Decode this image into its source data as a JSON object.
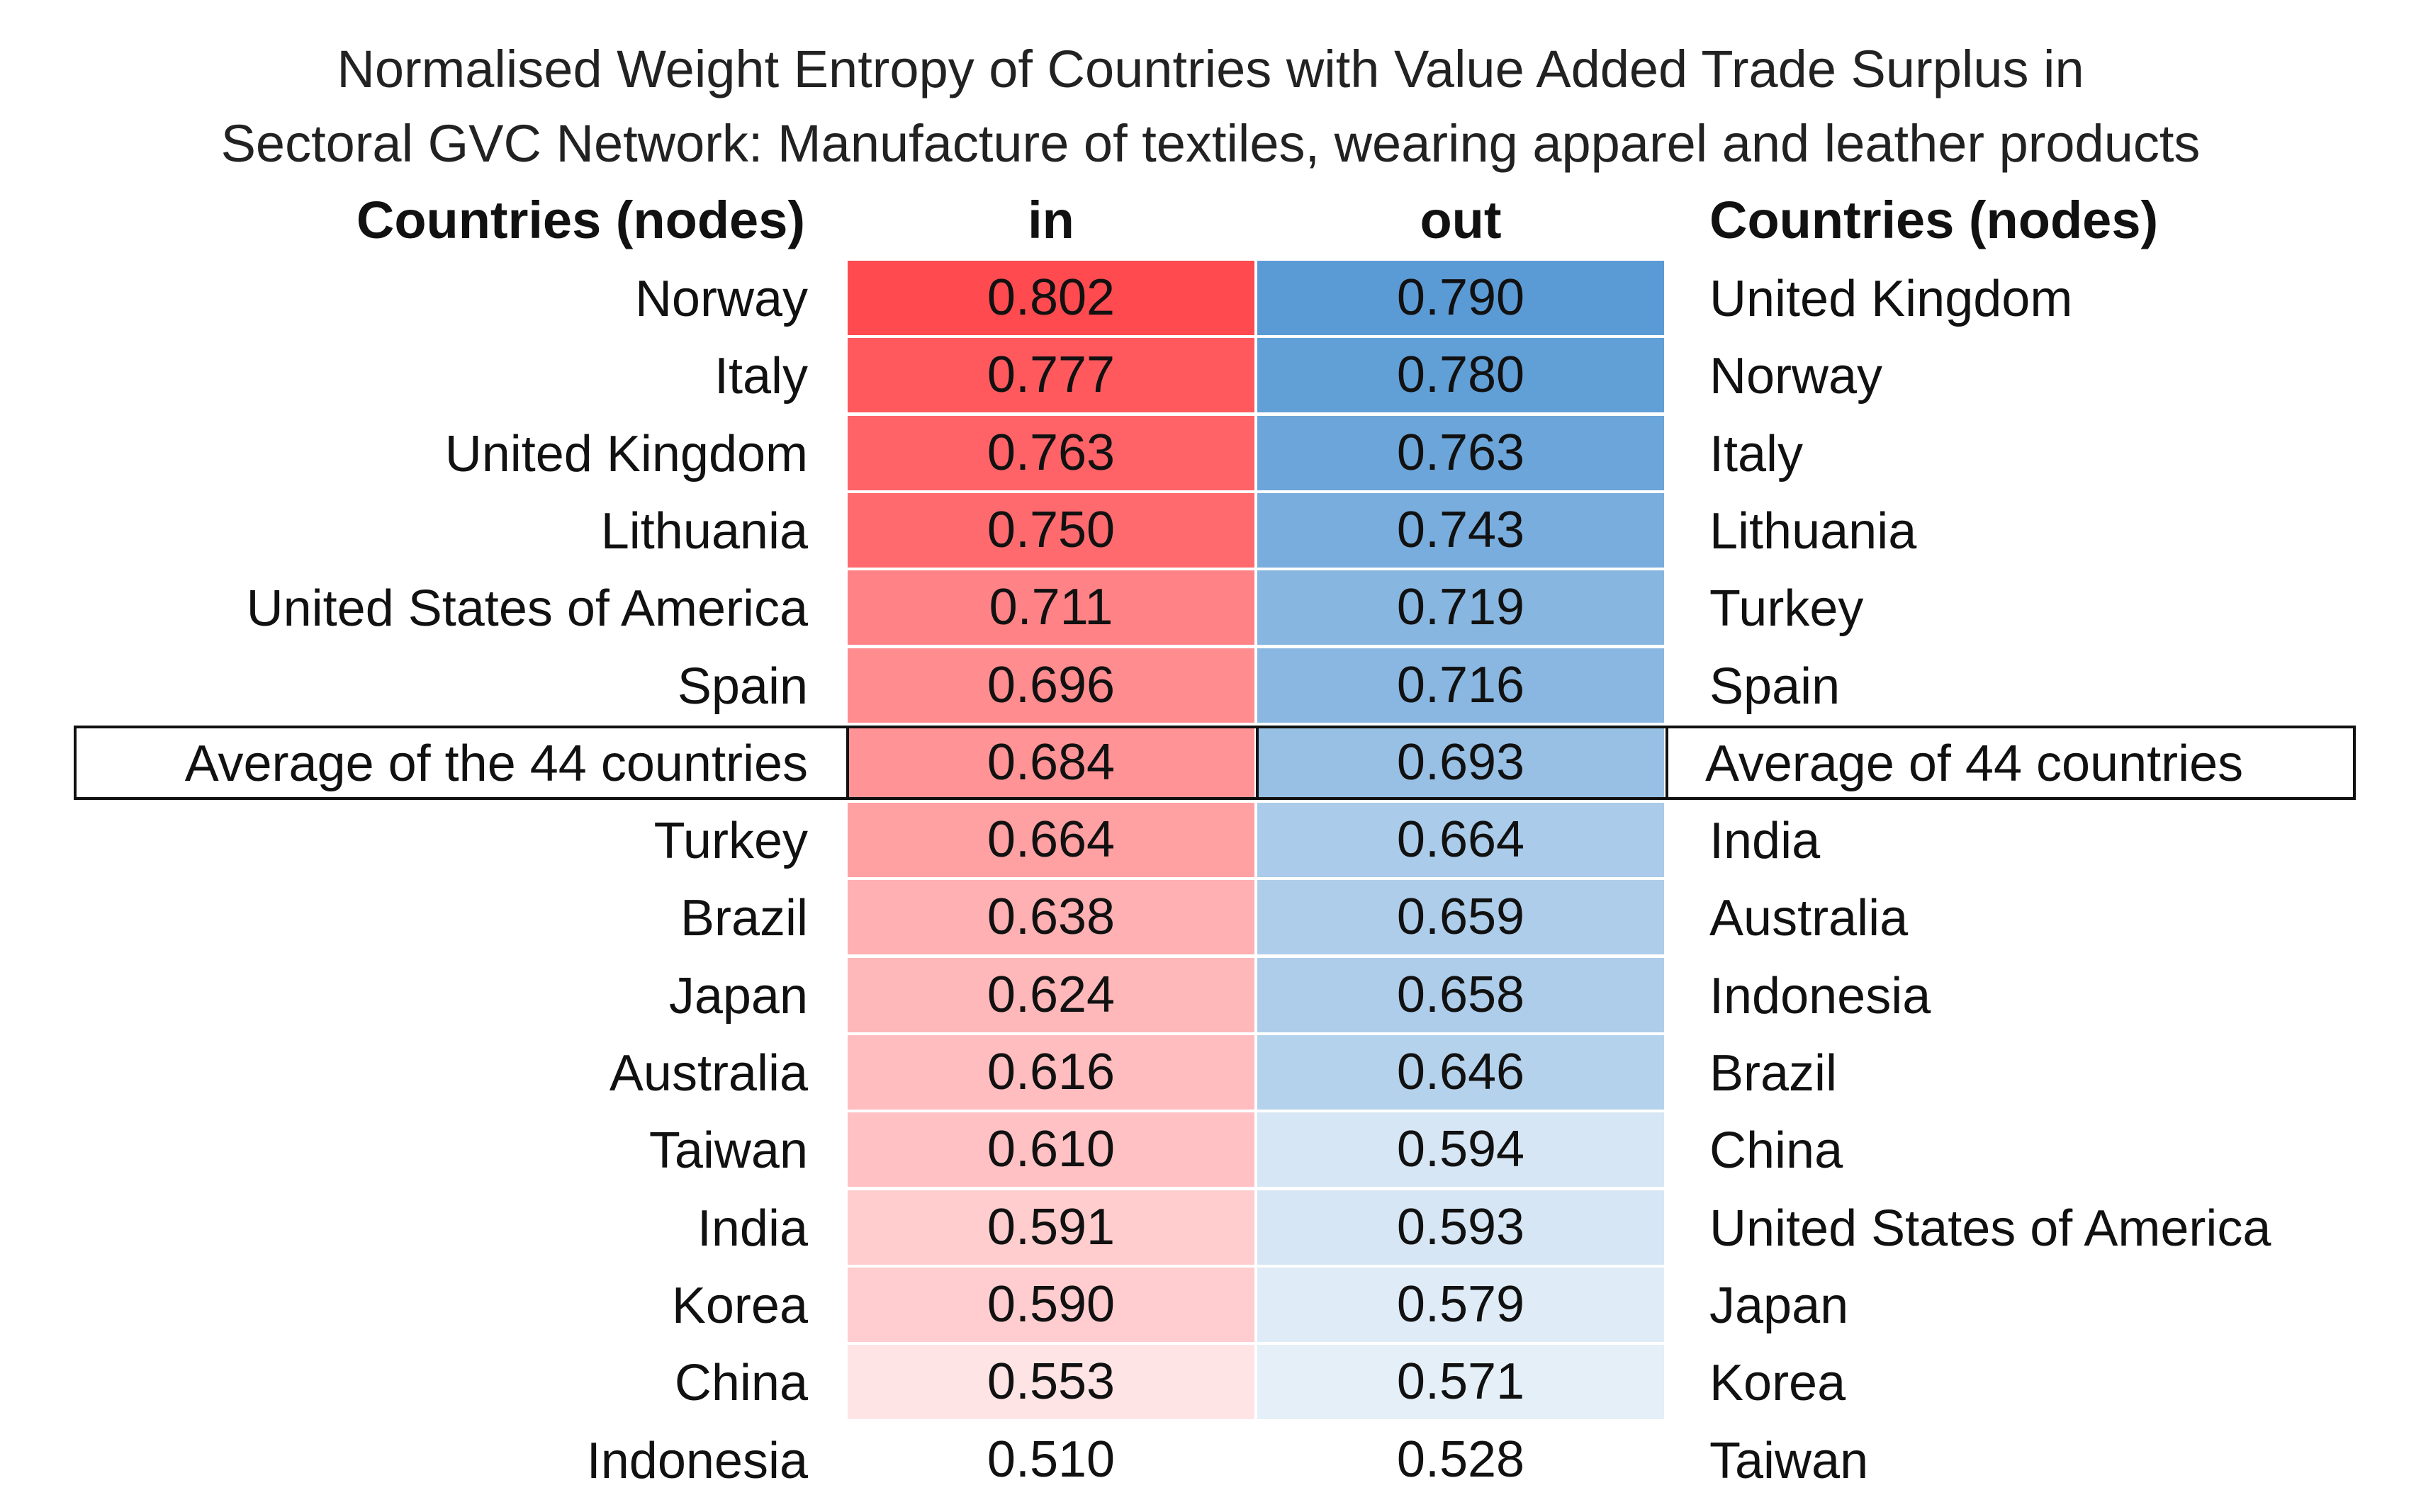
{
  "chart_data": {
    "type": "table",
    "title_line1": "Normalised Weight Entropy of Countries with Value Added Trade Surplus in",
    "title_line2": "Sectoral GVC Network: Manufacture of textiles, wearing apparel and leather products",
    "headers": {
      "left": "Countries (nodes)",
      "in": "in",
      "out": "out",
      "right": "Countries (nodes)"
    },
    "rows": [
      {
        "left": "Norway",
        "in": "0.802",
        "out": "0.790",
        "right": "United Kingdom",
        "in_value": 0.802,
        "out_value": 0.79,
        "average": false
      },
      {
        "left": "Italy",
        "in": "0.777",
        "out": "0.780",
        "right": "Norway",
        "in_value": 0.777,
        "out_value": 0.78,
        "average": false
      },
      {
        "left": "United Kingdom",
        "in": "0.763",
        "out": "0.763",
        "right": "Italy",
        "in_value": 0.763,
        "out_value": 0.763,
        "average": false
      },
      {
        "left": "Lithuania",
        "in": "0.750",
        "out": "0.743",
        "right": "Lithuania",
        "in_value": 0.75,
        "out_value": 0.743,
        "average": false
      },
      {
        "left": "United States of America",
        "in": "0.711",
        "out": "0.719",
        "right": "Turkey",
        "in_value": 0.711,
        "out_value": 0.719,
        "average": false
      },
      {
        "left": "Spain",
        "in": "0.696",
        "out": "0.716",
        "right": "Spain",
        "in_value": 0.696,
        "out_value": 0.716,
        "average": false
      },
      {
        "left": "Average of the 44 countries",
        "in": "0.684",
        "out": "0.693",
        "right": "Average of 44 countries",
        "in_value": 0.684,
        "out_value": 0.693,
        "average": true
      },
      {
        "left": "Turkey",
        "in": "0.664",
        "out": "0.664",
        "right": "India",
        "in_value": 0.664,
        "out_value": 0.664,
        "average": false
      },
      {
        "left": "Brazil",
        "in": "0.638",
        "out": "0.659",
        "right": "Australia",
        "in_value": 0.638,
        "out_value": 0.659,
        "average": false
      },
      {
        "left": "Japan",
        "in": "0.624",
        "out": "0.658",
        "right": "Indonesia",
        "in_value": 0.624,
        "out_value": 0.658,
        "average": false
      },
      {
        "left": "Australia",
        "in": "0.616",
        "out": "0.646",
        "right": "Brazil",
        "in_value": 0.616,
        "out_value": 0.646,
        "average": false
      },
      {
        "left": "Taiwan",
        "in": "0.610",
        "out": "0.594",
        "right": "China",
        "in_value": 0.61,
        "out_value": 0.594,
        "average": false
      },
      {
        "left": "India",
        "in": "0.591",
        "out": "0.593",
        "right": "United States of America",
        "in_value": 0.591,
        "out_value": 0.593,
        "average": false
      },
      {
        "left": "Korea",
        "in": "0.590",
        "out": "0.579",
        "right": "Japan",
        "in_value": 0.59,
        "out_value": 0.579,
        "average": false
      },
      {
        "left": "China",
        "in": "0.553",
        "out": "0.571",
        "right": "Korea",
        "in_value": 0.553,
        "out_value": 0.571,
        "average": false
      },
      {
        "left": "Indonesia",
        "in": "0.510",
        "out": "0.528",
        "right": "Taiwan",
        "in_value": 0.51,
        "out_value": 0.528,
        "average": false
      }
    ],
    "in_color_scale": {
      "low": "#ffffff",
      "high": "#ff4a4f",
      "min": 0.51,
      "max": 0.802
    },
    "out_color_scale": {
      "low": "#ffffff",
      "high": "#5b9bd5",
      "min": 0.528,
      "max": 0.79
    }
  }
}
